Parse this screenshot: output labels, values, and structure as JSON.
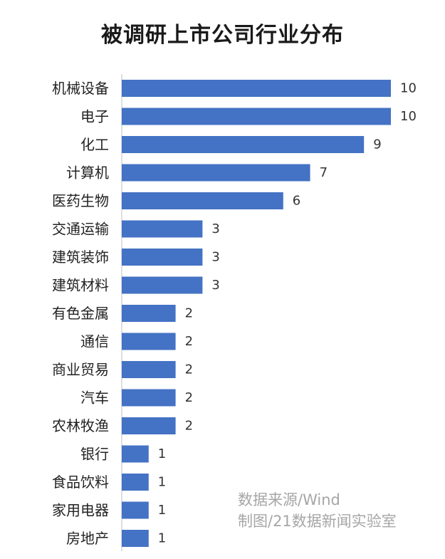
{
  "chart_data": {
    "type": "bar",
    "orientation": "horizontal",
    "title": "被调研上市公司行业分布",
    "categories": [
      "机械设备",
      "电子",
      "化工",
      "计算机",
      "医药生物",
      "交通运输",
      "建筑装饰",
      "建筑材料",
      "有色金属",
      "通信",
      "商业贸易",
      "汽车",
      "农林牧渔",
      "银行",
      "食品饮料",
      "家用电器",
      "房地产"
    ],
    "values": [
      10,
      10,
      9,
      7,
      6,
      3,
      3,
      3,
      2,
      2,
      2,
      2,
      2,
      1,
      1,
      1,
      1
    ],
    "xlim": [
      0,
      10
    ],
    "grid": false,
    "legend": "none",
    "bar_color": "#4472C4"
  },
  "source": {
    "line1": "数据来源/Wind",
    "line2": "制图/21数据新闻实验室"
  }
}
